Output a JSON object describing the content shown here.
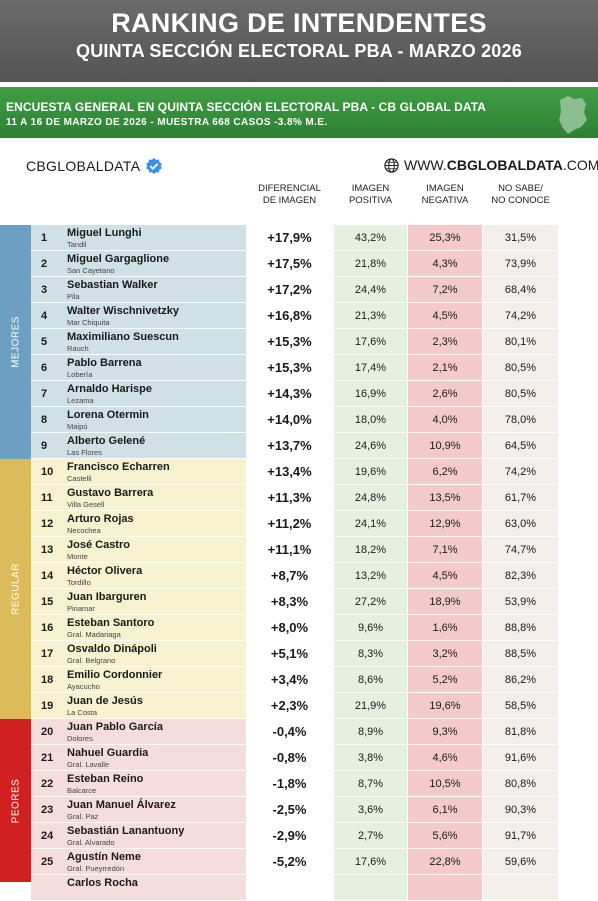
{
  "title": "RANKING DE INTENDENTES",
  "subtitle": "QUINTA SECCIÓN ELECTORAL PBA - MARZO 2026",
  "survey_line1": "ENCUESTA GENERAL EN QUINTA SECCIÓN ELECTORAL PBA - CB GLOBAL DATA",
  "survey_line2": "11 A 16 DE MARZO  DE 2026 - MUESTRA 668  CASOS -3.8% M.E.",
  "brand": "CBGLOBALDATA",
  "website_prefix": "WWW.",
  "website_bold": "CBGLOBALDATA",
  "website_suffix": ".COM",
  "columns": {
    "diff": [
      "DIFERENCIAL",
      "DE IMAGEN"
    ],
    "pos": [
      "IMAGEN",
      "POSITIVA"
    ],
    "neg": [
      "IMAGEN",
      "NEGATIVA"
    ],
    "nosabe": [
      "NO SABE/",
      "NO CONOCE"
    ]
  },
  "groups": [
    {
      "label": "MEJORES",
      "color": "#6c9fc2",
      "row_bg": "#cfe0e7",
      "start": 0,
      "count": 9
    },
    {
      "label": "REGULAR",
      "color": "#dcbc5a",
      "row_bg": "#f6f1cf",
      "start": 9,
      "count": 10
    },
    {
      "label": "PEORES",
      "color": "#d21f1f",
      "row_bg": "#f6dddd",
      "start": 19,
      "count": 7
    }
  ],
  "rows": [
    {
      "rank": "1",
      "name": "Miguel Lunghi",
      "city": "Tandil",
      "diff": "+17,9%",
      "pos": "43,2%",
      "neg": "25,3%",
      "nosabe": "31,5%"
    },
    {
      "rank": "2",
      "name": "Miguel Gargaglione",
      "city": "San Cayetano",
      "diff": "+17,5%",
      "pos": "21,8%",
      "neg": "4,3%",
      "nosabe": "73,9%"
    },
    {
      "rank": "3",
      "name": "Sebastian Walker",
      "city": "Pila",
      "diff": "+17,2%",
      "pos": "24,4%",
      "neg": "7,2%",
      "nosabe": "68,4%"
    },
    {
      "rank": "4",
      "name": "Walter Wischnivetzky",
      "city": "Mar Chiquita",
      "diff": "+16,8%",
      "pos": "21,3%",
      "neg": "4,5%",
      "nosabe": "74,2%"
    },
    {
      "rank": "5",
      "name": "Maximiliano Suescun",
      "city": "Rauch",
      "diff": "+15,3%",
      "pos": "17,6%",
      "neg": "2,3%",
      "nosabe": "80,1%"
    },
    {
      "rank": "6",
      "name": "Pablo Barrena",
      "city": "Lobería",
      "diff": "+15,3%",
      "pos": "17,4%",
      "neg": "2,1%",
      "nosabe": "80,5%"
    },
    {
      "rank": "7",
      "name": "Arnaldo Harispe",
      "city": "Lezama",
      "diff": "+14,3%",
      "pos": "16,9%",
      "neg": "2,6%",
      "nosabe": "80,5%"
    },
    {
      "rank": "8",
      "name": "Lorena Otermin",
      "city": "Maipú",
      "diff": "+14,0%",
      "pos": "18,0%",
      "neg": "4,0%",
      "nosabe": "78,0%"
    },
    {
      "rank": "9",
      "name": "Alberto Gelené",
      "city": "Las Flores",
      "diff": "+13,7%",
      "pos": "24,6%",
      "neg": "10,9%",
      "nosabe": "64,5%"
    },
    {
      "rank": "10",
      "name": "Francisco Echarren",
      "city": "Castelli",
      "diff": "+13,4%",
      "pos": "19,6%",
      "neg": "6,2%",
      "nosabe": "74,2%"
    },
    {
      "rank": "11",
      "name": "Gustavo Barrera",
      "city": "Villa Gesell",
      "diff": "+11,3%",
      "pos": "24,8%",
      "neg": "13,5%",
      "nosabe": "61,7%"
    },
    {
      "rank": "12",
      "name": "Arturo Rojas",
      "city": "Necochea",
      "diff": "+11,2%",
      "pos": "24,1%",
      "neg": "12,9%",
      "nosabe": "63,0%"
    },
    {
      "rank": "13",
      "name": "José Castro",
      "city": "Monte",
      "diff": "+11,1%",
      "pos": "18,2%",
      "neg": "7,1%",
      "nosabe": "74,7%"
    },
    {
      "rank": "14",
      "name": "Héctor Olivera",
      "city": "Tordillo",
      "diff": "+8,7%",
      "pos": "13,2%",
      "neg": "4,5%",
      "nosabe": "82,3%"
    },
    {
      "rank": "15",
      "name": "Juan Ibarguren",
      "city": "Pinamar",
      "diff": "+8,3%",
      "pos": "27,2%",
      "neg": "18,9%",
      "nosabe": "53,9%"
    },
    {
      "rank": "16",
      "name": "Esteban Santoro",
      "city": "Gral. Madariaga",
      "diff": "+8,0%",
      "pos": "9,6%",
      "neg": "1,6%",
      "nosabe": "88,8%"
    },
    {
      "rank": "17",
      "name": "Osvaldo Dinápoli",
      "city": "Gral. Belgrano",
      "diff": "+5,1%",
      "pos": "8,3%",
      "neg": "3,2%",
      "nosabe": "88,5%"
    },
    {
      "rank": "18",
      "name": "Emilio Cordonnier",
      "city": "Ayacucho",
      "diff": "+3,4%",
      "pos": "8,6%",
      "neg": "5,2%",
      "nosabe": "86,2%"
    },
    {
      "rank": "19",
      "name": "Juan de Jesús",
      "city": "La Costa",
      "diff": "+2,3%",
      "pos": "21,9%",
      "neg": "19,6%",
      "nosabe": "58,5%"
    },
    {
      "rank": "20",
      "name": "Juan Pablo García",
      "city": "Dolores",
      "diff": "-0,4%",
      "pos": "8,9%",
      "neg": "9,3%",
      "nosabe": "81,8%"
    },
    {
      "rank": "21",
      "name": "Nahuel Guardia",
      "city": "Gral. Lavalle",
      "diff": "-0,8%",
      "pos": "3,8%",
      "neg": "4,6%",
      "nosabe": "91,6%"
    },
    {
      "rank": "22",
      "name": "Esteban Reino",
      "city": "Balcarce",
      "diff": "-1,8%",
      "pos": "8,7%",
      "neg": "10,5%",
      "nosabe": "80,8%"
    },
    {
      "rank": "23",
      "name": "Juan Manuel Álvarez",
      "city": "Gral. Paz",
      "diff": "-2,5%",
      "pos": "3,6%",
      "neg": "6,1%",
      "nosabe": "90,3%"
    },
    {
      "rank": "24",
      "name": "Sebastián Lanantuony",
      "city": "Gral. Alvarado",
      "diff": "-2,9%",
      "pos": "2,7%",
      "neg": "5,6%",
      "nosabe": "91,7%"
    },
    {
      "rank": "25",
      "name": "Agustín Neme",
      "city": "Gral. Pueyrredón",
      "diff": "-5,2%",
      "pos": "17,6%",
      "neg": "22,8%",
      "nosabe": "59,6%"
    },
    {
      "rank": "",
      "name": "Carlos Rocha",
      "city": "",
      "diff": "",
      "pos": "",
      "neg": "",
      "nosabe": ""
    }
  ]
}
